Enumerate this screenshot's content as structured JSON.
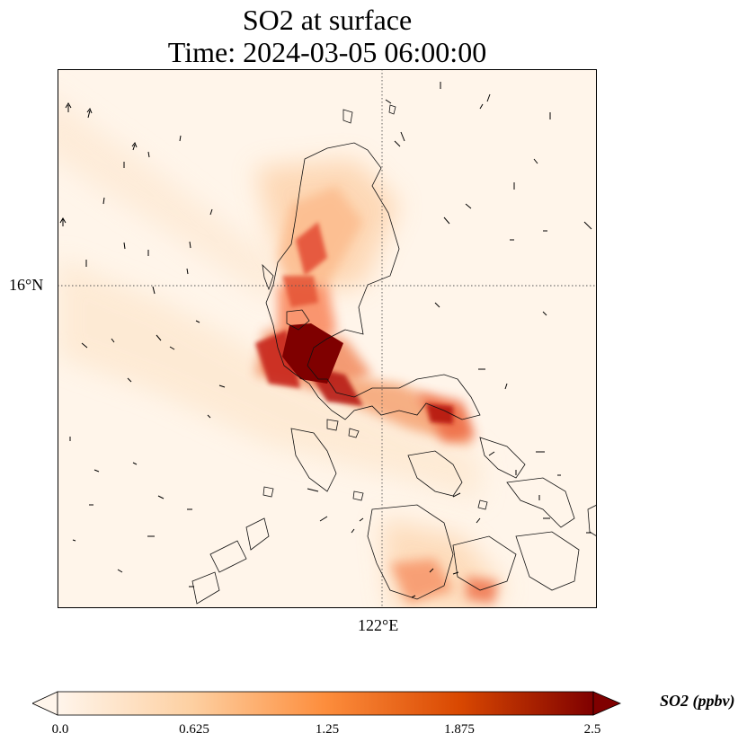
{
  "title": {
    "line1": "SO2 at surface",
    "line2": "Time: 2024-03-05 06:00:00"
  },
  "axes": {
    "lat_label": "16°N",
    "lon_label": "122°E"
  },
  "colorbar": {
    "label": "SO2 (ppbv)",
    "ticks": [
      "0.0",
      "0.625",
      "1.25",
      "1.875",
      "2.5"
    ],
    "min": 0.0,
    "max": 2.5,
    "colors": [
      "#fff5eb",
      "#fdd0a2",
      "#fd8d3c",
      "#d94801",
      "#7f0000"
    ]
  },
  "map": {
    "colormap": "OrRd",
    "background": "#fff4e6",
    "gridline_style": "dotted",
    "features": [
      "coastlines",
      "wind-vectors",
      "so2-concentration-field"
    ]
  }
}
